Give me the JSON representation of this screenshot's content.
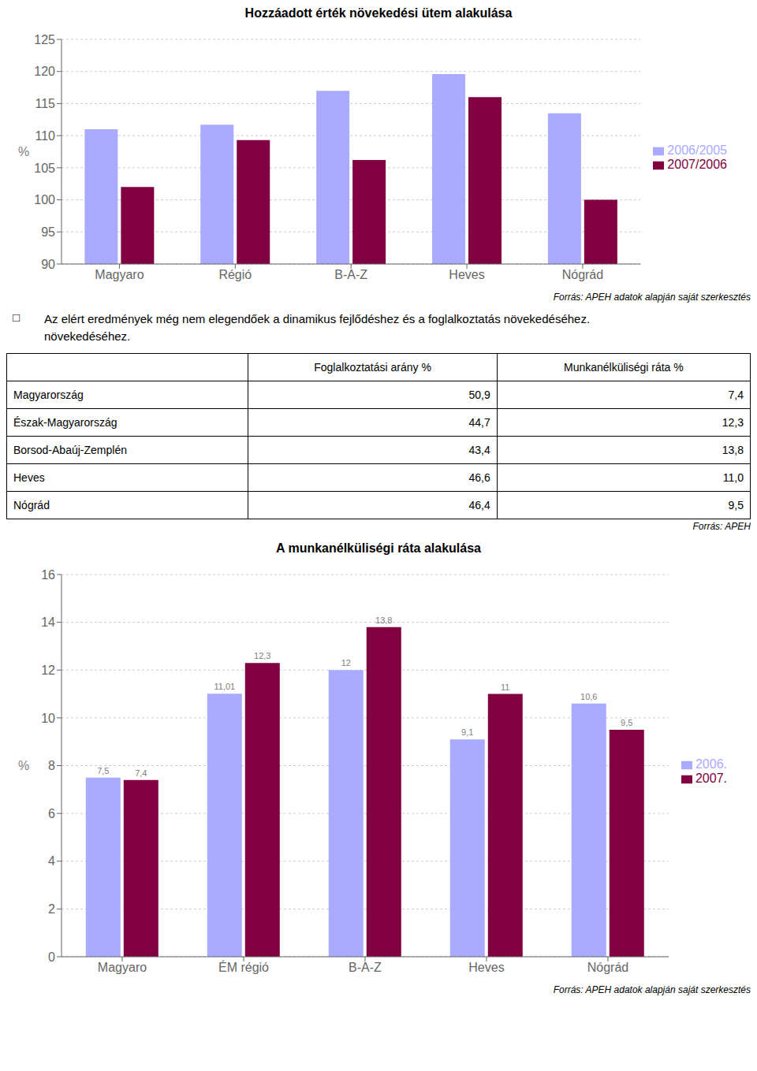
{
  "chart_data": [
    {
      "type": "bar",
      "title": "Hozzáadott érték növekedési ütem alakulása",
      "categories": [
        "Magyaro",
        "Régió",
        "B-A-Z",
        "Heves",
        "Nógrád"
      ],
      "series": [
        {
          "name": "2006/2005",
          "color": "#aaaaff",
          "values": [
            111.0,
            111.7,
            117.0,
            119.6,
            113.5
          ]
        },
        {
          "name": "2007/2006",
          "color": "#800040",
          "values": [
            102.0,
            109.3,
            106.2,
            116.0,
            100.0
          ]
        }
      ],
      "ylabel": "%",
      "ylim": [
        90,
        125
      ],
      "yticks": [
        90,
        95,
        100,
        105,
        110,
        115,
        120,
        125
      ],
      "grid": true,
      "legend": "right",
      "source": "Forrás: APEH adatok alapján saját szerkesztés"
    },
    {
      "type": "text",
      "annotations": [
        "□",
        "Az elért eredmények még nem elegendőek a dinamikus fejlődéshez és a foglalkoztatás növekedéséhez.",
        "növekedéséhez."
      ]
    },
    {
      "type": "table",
      "columns": [
        null,
        "Foglalkoztatási arány  %",
        "Munkanélküliségi ráta %"
      ],
      "rows": [
        [
          "Magyarország",
          "50,9",
          "7,4"
        ],
        [
          "Észak-Magyarország",
          "44,7",
          "12,3"
        ],
        [
          "Borsod-Abaúj-Zemplén",
          "43,4",
          "13,8"
        ],
        [
          "Heves",
          "46,6",
          "11,0"
        ],
        [
          "Nógrád",
          "46,4",
          "9,5"
        ]
      ],
      "source": "Forrás: APEH"
    },
    {
      "type": "bar",
      "title": "A munkanélküliségi ráta alakulása",
      "categories": [
        "Magyaro",
        "ÉM régió",
        "B-A-Z",
        "Heves",
        "Nógrád"
      ],
      "series": [
        {
          "name": "2006.",
          "color": "#aaaaff",
          "values": [
            7.5,
            11.01,
            12.0,
            9.1,
            10.6
          ],
          "value_labels": [
            "7,5",
            "11,01",
            "12",
            "9,1",
            "10,6"
          ]
        },
        {
          "name": "2007.",
          "color": "#800040",
          "values": [
            7.4,
            12.3,
            13.8,
            11.0,
            9.5
          ],
          "value_labels": [
            "7,4",
            "12,3",
            "13,8",
            "11",
            "9,5"
          ]
        }
      ],
      "ylabel": "%",
      "ylim": [
        0,
        16
      ],
      "yticks": [
        0,
        2,
        4,
        6,
        8,
        10,
        12,
        14,
        16
      ],
      "grid": true,
      "legend": "right",
      "data_labels": true,
      "source": "Forrás: APEH adatok alapján saját szerkesztés"
    }
  ]
}
